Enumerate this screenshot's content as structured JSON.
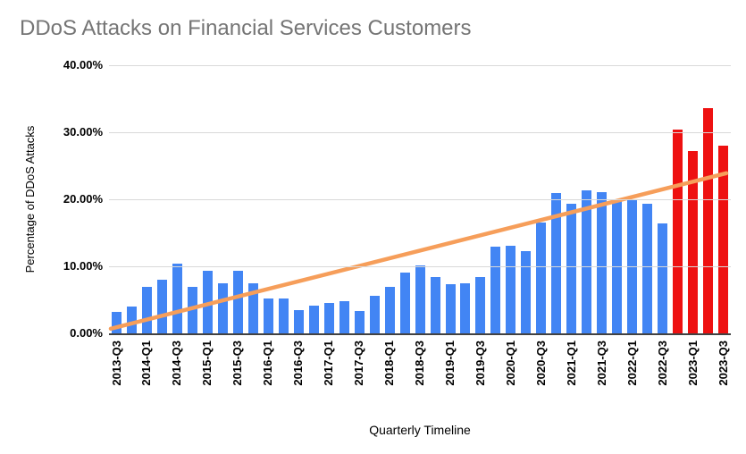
{
  "title": "DDoS Attacks on Financial Services Customers",
  "chart_data": {
    "type": "bar",
    "title": "DDoS Attacks on Financial Services Customers",
    "xlabel": "Quarterly Timeline",
    "ylabel": "Percentage of DDoS Attacks",
    "ylim": [
      0,
      40
    ],
    "grid": "horizontal",
    "legend": "none",
    "categories": [
      "2013-Q3",
      "2013-Q4",
      "2014-Q1",
      "2014-Q2",
      "2014-Q3",
      "2014-Q4",
      "2015-Q1",
      "2015-Q2",
      "2015-Q3",
      "2015-Q4",
      "2016-Q1",
      "2016-Q2",
      "2016-Q3",
      "2016-Q4",
      "2017-Q1",
      "2017-Q2",
      "2017-Q3",
      "2017-Q4",
      "2018-Q1",
      "2018-Q2",
      "2018-Q3",
      "2018-Q4",
      "2019-Q1",
      "2019-Q2",
      "2019-Q3",
      "2019-Q4",
      "2020-Q1",
      "2020-Q2",
      "2020-Q3",
      "2020-Q4",
      "2021-Q1",
      "2021-Q2",
      "2021-Q3",
      "2021-Q4",
      "2022-Q1",
      "2022-Q2",
      "2022-Q3",
      "2022-Q4",
      "2023-Q1",
      "2023-Q2",
      "2023-Q3"
    ],
    "values": [
      3.2,
      4.0,
      7.0,
      8.0,
      10.4,
      7.0,
      9.3,
      7.5,
      9.3,
      7.5,
      5.2,
      5.2,
      3.5,
      4.1,
      4.6,
      4.8,
      3.3,
      5.6,
      7.0,
      9.1,
      10.1,
      8.4,
      7.3,
      7.5,
      8.4,
      12.9,
      13.1,
      12.3,
      16.6,
      21.0,
      19.4,
      21.4,
      21.1,
      19.7,
      20.0,
      19.3,
      16.4,
      30.4,
      27.2,
      33.6,
      28.0
    ],
    "x_tick_every": 2,
    "y_ticks": [
      {
        "label": "40.00%",
        "value": 40
      },
      {
        "label": "30.00%",
        "value": 30
      },
      {
        "label": "20.00%",
        "value": 20
      },
      {
        "label": "10.00%",
        "value": 10
      },
      {
        "label": "0.00%",
        "value": 0
      }
    ],
    "highlight_last_n": 4,
    "trendline": {
      "start_value": 0.7,
      "end_value": 23.9,
      "color": "#F69E5A",
      "width": 4.5
    },
    "colors": {
      "bar": "#4285F4",
      "highlight": "#EE1111",
      "gridline": "#d9d9d9",
      "axis": "#424242",
      "title_text": "#757575",
      "label_text": "#000000"
    }
  }
}
